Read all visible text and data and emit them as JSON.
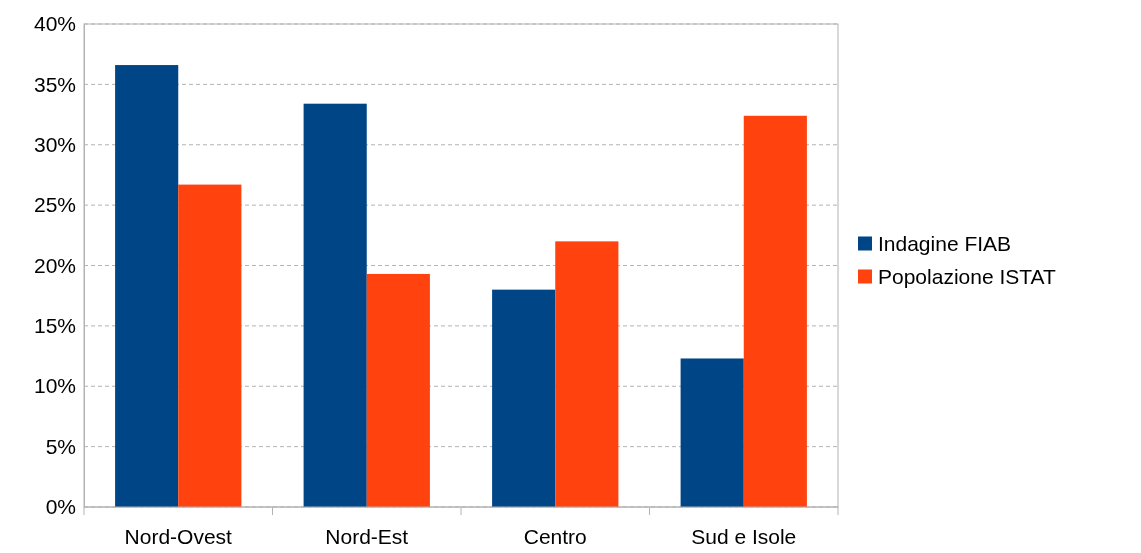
{
  "chart_data": {
    "type": "bar",
    "categories": [
      "Nord-Ovest",
      "Nord-Est",
      "Centro",
      "Sud e Isole"
    ],
    "series": [
      {
        "name": "Indagine FIAB",
        "color": "#004586",
        "values": [
          36.6,
          33.4,
          18.0,
          12.3
        ]
      },
      {
        "name": "Popolazione ISTAT",
        "color": "#ff420e",
        "values": [
          26.7,
          19.3,
          22.0,
          32.4
        ]
      }
    ],
    "ylim": [
      0,
      40
    ],
    "yticks": [
      {
        "value": 0,
        "label": "0%"
      },
      {
        "value": 5,
        "label": "5%"
      },
      {
        "value": 10,
        "label": "10%"
      },
      {
        "value": 15,
        "label": "15%"
      },
      {
        "value": 20,
        "label": "20%"
      },
      {
        "value": 25,
        "label": "25%"
      },
      {
        "value": 30,
        "label": "30%"
      },
      {
        "value": 35,
        "label": "35%"
      },
      {
        "value": 40,
        "label": "40%"
      }
    ],
    "grid": "y",
    "legend": "right"
  }
}
